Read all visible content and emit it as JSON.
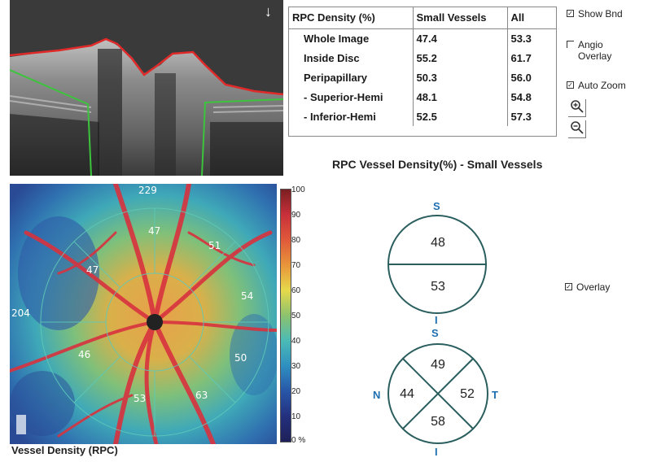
{
  "bscan": {
    "arrow": "↓"
  },
  "table": {
    "headers": [
      "RPC Density (%)",
      "Small Vessels",
      "All"
    ],
    "rows": [
      {
        "label": "Whole Image",
        "small": "47.4",
        "all": "53.3"
      },
      {
        "label": "Inside Disc",
        "small": "55.2",
        "all": "61.7"
      },
      {
        "label": "Peripapillary",
        "small": "50.3",
        "all": "56.0"
      },
      {
        "label": "- Superior-Hemi",
        "small": "48.1",
        "all": "54.8"
      },
      {
        "label": "- Inferior-Hemi",
        "small": "52.5",
        "all": "57.3"
      }
    ]
  },
  "options": {
    "show_bnd": "Show Bnd",
    "angio_overlay_1": "Angio",
    "angio_overlay_2": "Overlay",
    "auto_zoom": "Auto Zoom",
    "zoom_in_icon": "zoom-in-icon",
    "zoom_out_icon": "zoom-out-icon",
    "show_bnd_checked": true,
    "angio_overlay_checked": false,
    "auto_zoom_checked": true
  },
  "section_title": "RPC Vessel Density(%) - Small Vessels",
  "map": {
    "label": "Vessel Density (RPC)",
    "overlay_values": [
      "229",
      "47",
      "51",
      "47",
      "54",
      "204",
      "46",
      "50",
      "53",
      "63"
    ]
  },
  "scale": {
    "ticks": [
      "100",
      "90",
      "80",
      "70",
      "60",
      "50",
      "40",
      "30",
      "20",
      "10",
      "0 %"
    ]
  },
  "hemi_diagram": {
    "top_label": "S",
    "bottom_label": "I",
    "superior": "48",
    "inferior": "53"
  },
  "quadrant_diagram": {
    "top_label": "S",
    "bottom_label": "I",
    "left_label": "N",
    "right_label": "T",
    "superior": "49",
    "nasal": "44",
    "temporal": "52",
    "inferior": "58"
  },
  "overlay_option": {
    "label": "Overlay",
    "checked": true
  },
  "colors": {
    "accent_blue": "#1e6fb0",
    "boundary_red": "#e02a2a",
    "boundary_green": "#3cc43c",
    "diagram_stroke": "#2b5e5e"
  }
}
